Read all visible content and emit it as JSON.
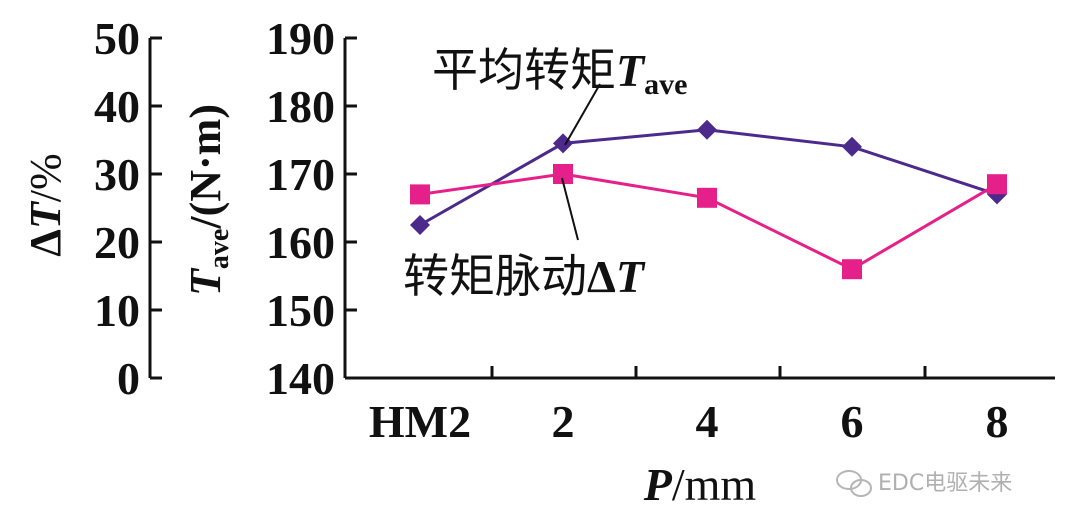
{
  "chart_data": {
    "type": "line",
    "categories": [
      "HM2",
      "2",
      "4",
      "6",
      "8"
    ],
    "xlabel": "P/mm",
    "xlabel_var": "P",
    "xlabel_unit": "/mm",
    "y_right": {
      "label_var": "T",
      "label_sub": "ave",
      "label_unit": "/(N·m)",
      "ylim": [
        140,
        190
      ],
      "ticks": [
        "140",
        "150",
        "160",
        "170",
        "180",
        "190"
      ]
    },
    "y_left": {
      "label_prefix": "Δ",
      "label_var": "T",
      "label_unit": "/%",
      "ylim": [
        0,
        50
      ],
      "ticks": [
        "0",
        "10",
        "20",
        "30",
        "40",
        "50"
      ]
    },
    "series": [
      {
        "values": [
          162.5,
          174.5,
          176.5,
          174,
          167
        ],
        "axis": "right",
        "color": "#4b2a8c",
        "marker": "diamond",
        "annotation_text": "平均转矩",
        "annotation_var": "T",
        "annotation_sub": "ave"
      },
      {
        "values": [
          27,
          30,
          26.5,
          16,
          28.5
        ],
        "axis": "left",
        "color": "#e6208a",
        "marker": "square",
        "annotation_text": "转矩脉动",
        "annotation_prefix": "Δ",
        "annotation_var": "T"
      }
    ]
  },
  "watermark": {
    "text": "EDC电驱未来"
  }
}
